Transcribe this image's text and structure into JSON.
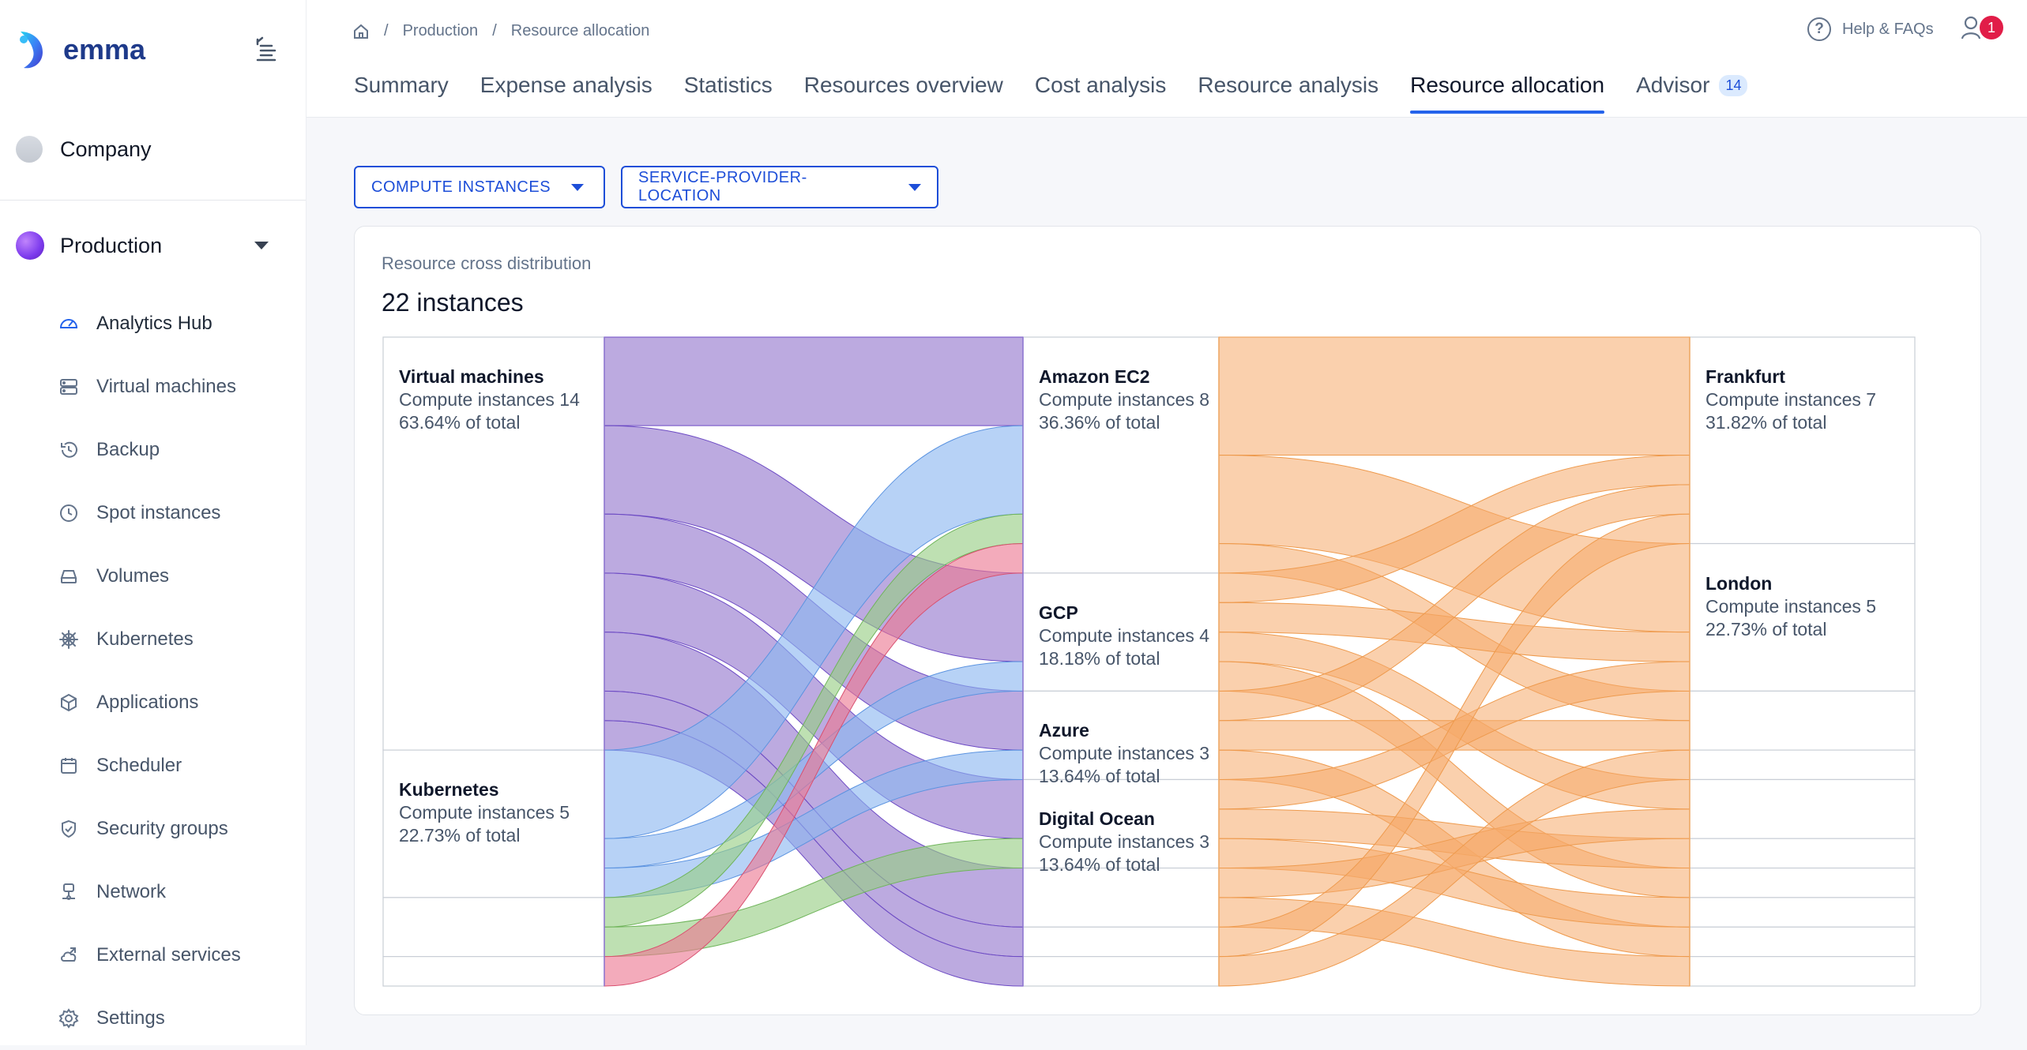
{
  "app": {
    "logo_text": "emma"
  },
  "sidebar": {
    "company": "Company",
    "project": "Production",
    "items": [
      {
        "label": "Analytics Hub",
        "icon": "gauge-icon",
        "active": true
      },
      {
        "label": "Virtual machines",
        "icon": "server-icon"
      },
      {
        "label": "Backup",
        "icon": "history-icon"
      },
      {
        "label": "Spot instances",
        "icon": "clock-icon"
      },
      {
        "label": "Volumes",
        "icon": "drive-icon"
      },
      {
        "label": "Kubernetes",
        "icon": "helm-icon"
      },
      {
        "label": "Applications",
        "icon": "box-icon"
      },
      {
        "label": "Scheduler",
        "icon": "calendar-icon"
      },
      {
        "label": "Security groups",
        "icon": "shield-icon"
      },
      {
        "label": "Network",
        "icon": "network-icon"
      },
      {
        "label": "External services",
        "icon": "cloud-link-icon"
      },
      {
        "label": "Settings",
        "icon": "gear-icon"
      }
    ]
  },
  "breadcrumb": {
    "level1": "Production",
    "level2": "Resource allocation"
  },
  "header": {
    "help_label": "Help & FAQs",
    "notification_count": "1"
  },
  "tabs": [
    {
      "label": "Summary"
    },
    {
      "label": "Expense analysis"
    },
    {
      "label": "Statistics"
    },
    {
      "label": "Resources overview"
    },
    {
      "label": "Cost analysis"
    },
    {
      "label": "Resource analysis"
    },
    {
      "label": "Resource allocation",
      "active": true
    },
    {
      "label": "Advisor",
      "badge": "14"
    }
  ],
  "filters": {
    "resource": "COMPUTE INSTANCES",
    "grouping": "SERVICE-PROVIDER-LOCATION"
  },
  "card": {
    "subtitle": "Resource cross distribution",
    "title": "22 instances"
  },
  "colors": {
    "accent": "#2563eb",
    "virtual_machines": "#b8a7dc",
    "kubernetes": "#b3d1f5",
    "green": "#b6dca6",
    "red": "#f2a6b6",
    "orange": "#f8c79e"
  },
  "chart_data": {
    "type": "sankey",
    "total": 22,
    "columns": [
      [
        {
          "name": "Virtual machines",
          "count_text": "Compute instances 14",
          "share_text": "63.64% of total",
          "value": 14
        },
        {
          "name": "Kubernetes",
          "count_text": "Compute instances 5",
          "share_text": "22.73% of total",
          "value": 5
        },
        {
          "name": "",
          "value": 2
        },
        {
          "name": "",
          "value": 1
        }
      ],
      [
        {
          "name": "Amazon EC2",
          "count_text": "Compute instances 8",
          "share_text": "36.36% of total",
          "value": 8
        },
        {
          "name": "GCP",
          "count_text": "Compute instances 4",
          "share_text": "18.18% of total",
          "value": 4
        },
        {
          "name": "Azure",
          "count_text": "Compute instances 3",
          "share_text": "13.64% of total",
          "value": 3
        },
        {
          "name": "Digital Ocean",
          "count_text": "Compute instances 3",
          "share_text": "13.64% of total",
          "value": 3
        },
        {
          "name": "",
          "value": 2
        },
        {
          "name": "",
          "value": 1
        },
        {
          "name": "",
          "value": 1
        }
      ],
      [
        {
          "name": "Frankfurt",
          "count_text": "Compute instances 7",
          "share_text": "31.82% of total",
          "value": 7
        },
        {
          "name": "London",
          "count_text": "Compute instances 5",
          "share_text": "22.73% of total",
          "value": 5
        },
        {
          "name": "",
          "value": 2
        },
        {
          "name": "",
          "value": 1
        },
        {
          "name": "",
          "value": 2
        },
        {
          "name": "",
          "value": 1
        },
        {
          "name": "",
          "value": 1
        },
        {
          "name": "",
          "value": 1
        },
        {
          "name": "",
          "value": 1
        },
        {
          "name": "",
          "value": 1
        }
      ]
    ],
    "links_stage1": [
      {
        "source": 0,
        "target": 0,
        "value": 3,
        "color": "purple"
      },
      {
        "source": 0,
        "target": 1,
        "value": 3,
        "color": "purple"
      },
      {
        "source": 0,
        "target": 2,
        "value": 2,
        "color": "purple"
      },
      {
        "source": 0,
        "target": 3,
        "value": 2,
        "color": "purple"
      },
      {
        "source": 0,
        "target": 4,
        "value": 2,
        "color": "purple"
      },
      {
        "source": 0,
        "target": 5,
        "value": 1,
        "color": "purple"
      },
      {
        "source": 0,
        "target": 6,
        "value": 1,
        "color": "purple"
      },
      {
        "source": 1,
        "target": 0,
        "value": 3,
        "color": "blue"
      },
      {
        "source": 1,
        "target": 1,
        "value": 1,
        "color": "blue"
      },
      {
        "source": 1,
        "target": 2,
        "value": 1,
        "color": "blue"
      },
      {
        "source": 2,
        "target": 0,
        "value": 1,
        "color": "green"
      },
      {
        "source": 2,
        "target": 3,
        "value": 1,
        "color": "green"
      },
      {
        "source": 3,
        "target": 0,
        "value": 1,
        "color": "red"
      }
    ],
    "links_stage2": [
      {
        "source": 0,
        "target": 0,
        "value": 4
      },
      {
        "source": 0,
        "target": 1,
        "value": 3
      },
      {
        "source": 0,
        "target": 2,
        "value": 1
      },
      {
        "source": 1,
        "target": 0,
        "value": 1
      },
      {
        "source": 1,
        "target": 1,
        "value": 1
      },
      {
        "source": 1,
        "target": 4,
        "value": 1
      },
      {
        "source": 1,
        "target": 6,
        "value": 1
      },
      {
        "source": 2,
        "target": 0,
        "value": 1
      },
      {
        "source": 2,
        "target": 2,
        "value": 1
      },
      {
        "source": 2,
        "target": 8,
        "value": 1
      },
      {
        "source": 3,
        "target": 1,
        "value": 1
      },
      {
        "source": 3,
        "target": 5,
        "value": 1
      },
      {
        "source": 3,
        "target": 7,
        "value": 1
      },
      {
        "source": 4,
        "target": 4,
        "value": 1
      },
      {
        "source": 4,
        "target": 9,
        "value": 1
      },
      {
        "source": 5,
        "target": 0,
        "value": 1
      },
      {
        "source": 6,
        "target": 3,
        "value": 1
      }
    ]
  }
}
